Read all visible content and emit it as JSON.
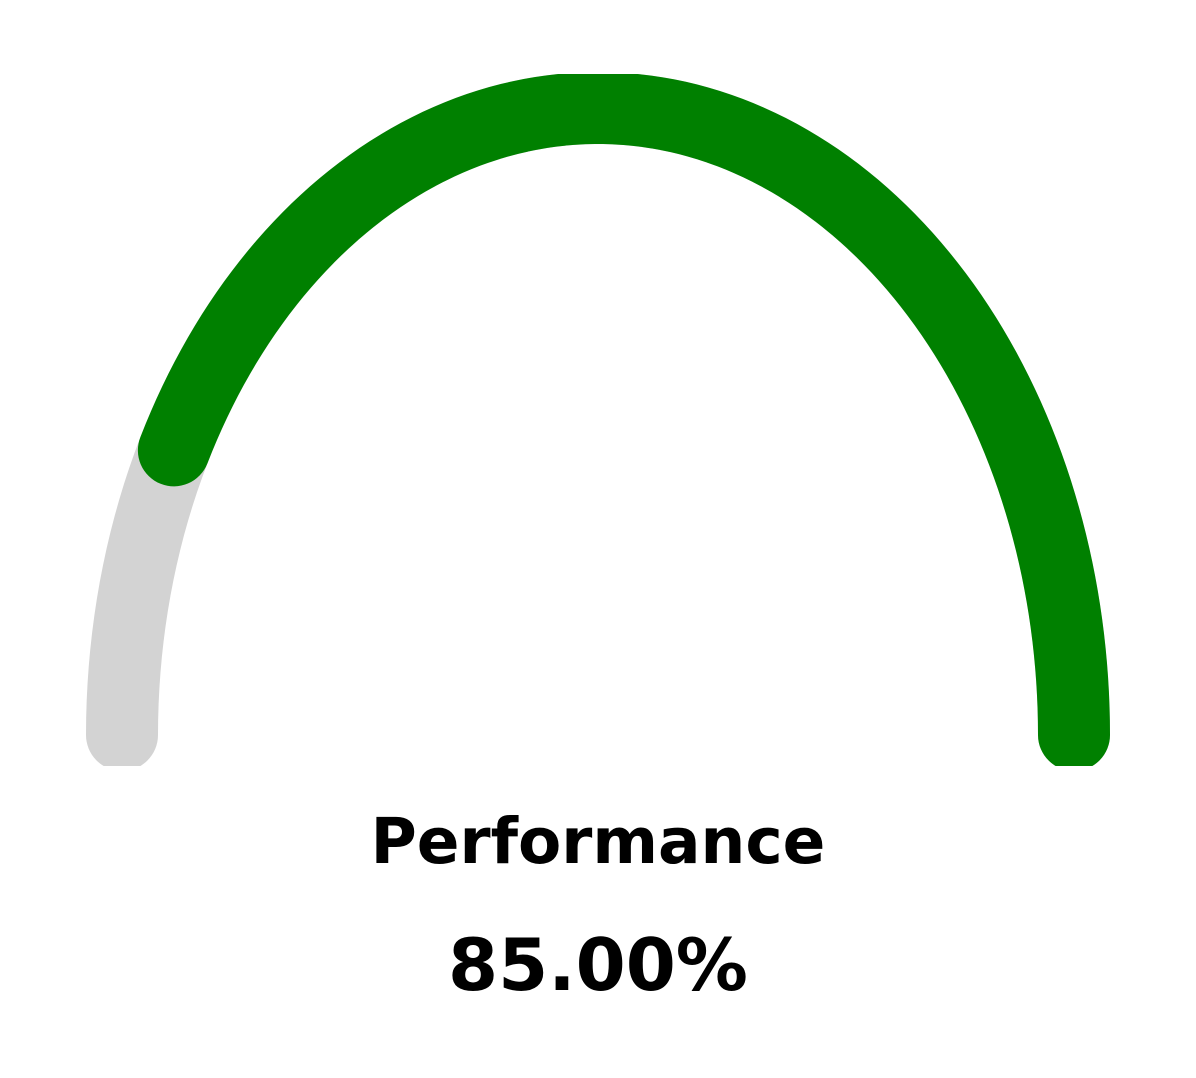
{
  "chart_data": {
    "type": "gauge",
    "label": "Performance",
    "value_text": "85.00%",
    "value": 85,
    "min": 0,
    "max": 100,
    "colors": {
      "fill": "#008000",
      "track": "#d3d3d3",
      "text": "#000000"
    }
  }
}
